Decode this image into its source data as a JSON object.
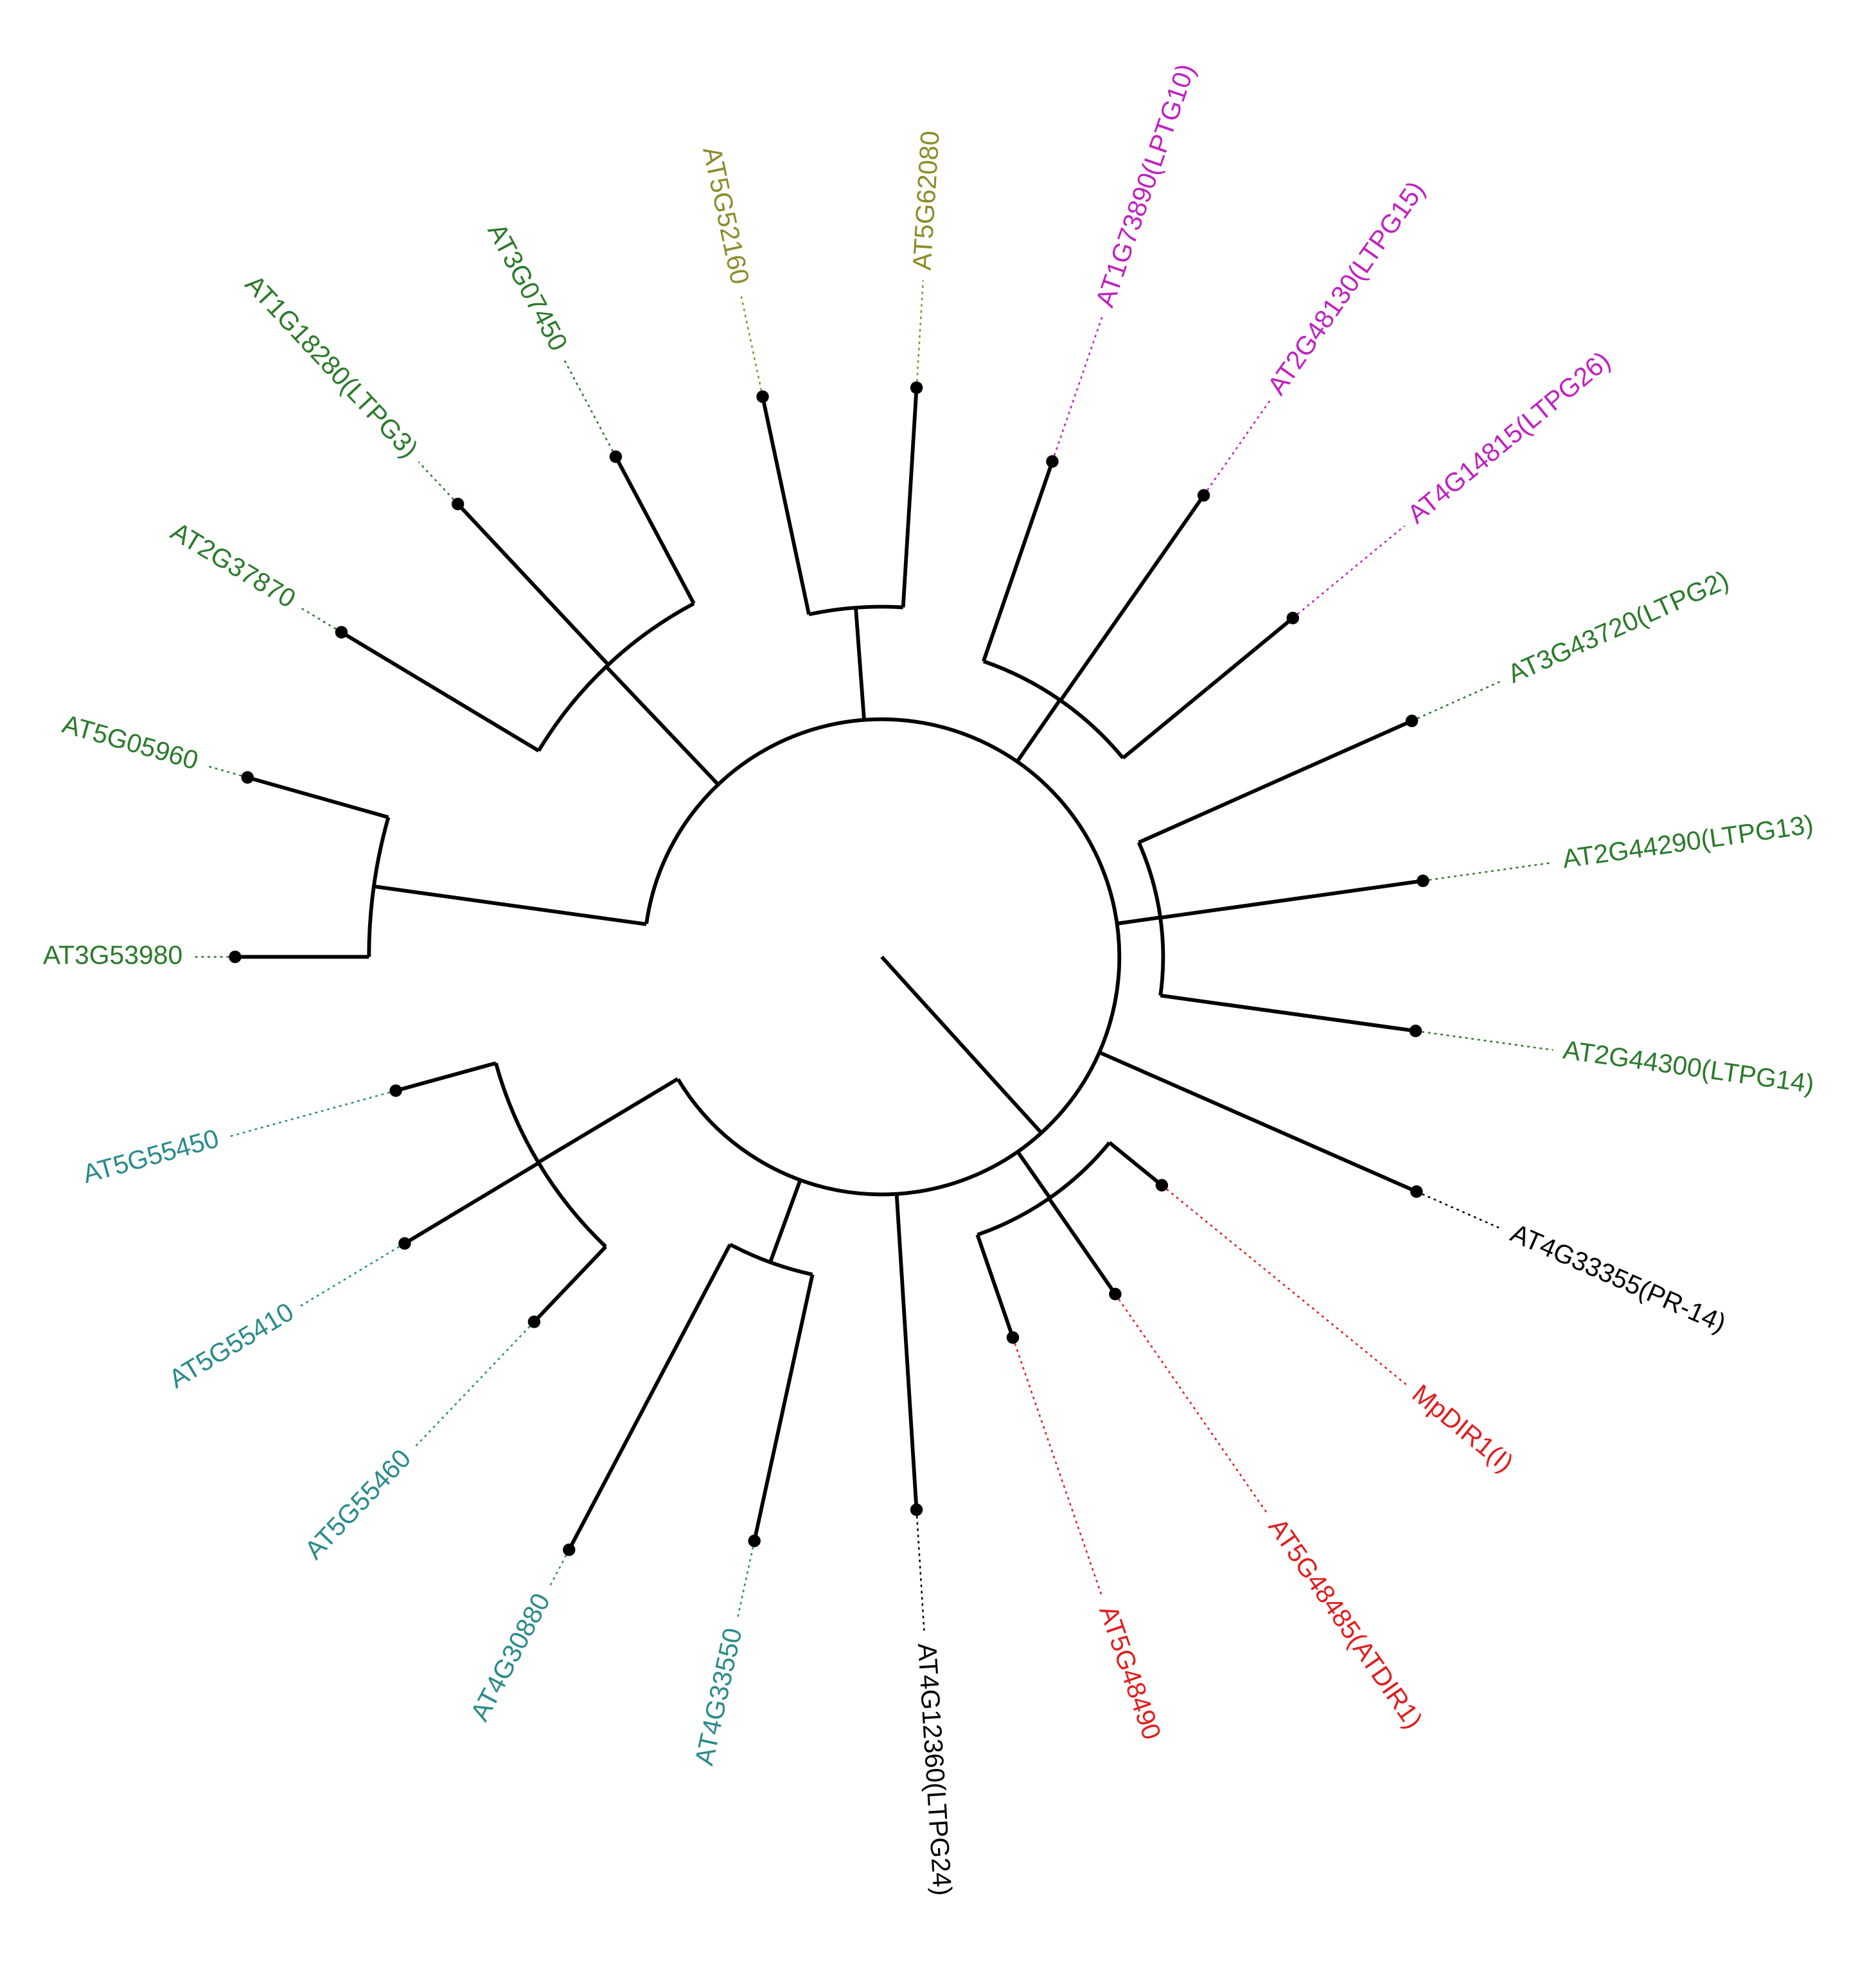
{
  "leaves": [
    {
      "label": "AT3G53980",
      "color": "#2b7a2b"
    },
    {
      "label": "AT5G05960",
      "color": "#2b7a2b"
    },
    {
      "label": "AT2G37870",
      "color": "#2b7a2b"
    },
    {
      "label": "AT1G18280(LTPG3)",
      "color": "#2b7a2b"
    },
    {
      "label": "AT3G07450",
      "color": "#2b7a2b"
    },
    {
      "label": "AT5G52160",
      "color": "#8c8c2a"
    },
    {
      "label": "AT5G62080",
      "color": "#8c8c2a"
    },
    {
      "label": "AT1G73890(LPTG10)",
      "color": "#c020c0"
    },
    {
      "label": "AT2G48130(LTPG15)",
      "color": "#c020c0"
    },
    {
      "label": "AT4G14815(LTPG26)",
      "color": "#c020c0"
    },
    {
      "label": "AT3G43720(LTPG2)",
      "color": "#2b7a2b"
    },
    {
      "label": "AT2G44290(LTPG13)",
      "color": "#2b7a2b"
    },
    {
      "label": "AT2G44300(LTPG14)",
      "color": "#2b7a2b"
    },
    {
      "label": "AT4G33355(PR-14)",
      "color": "#000000"
    },
    {
      "label": "MpDIR1(I)",
      "color": "#e01e1e"
    },
    {
      "label": "AT5G48485(ATDIR1)",
      "color": "#e01e1e"
    },
    {
      "label": "AT5G48490",
      "color": "#e01e1e"
    },
    {
      "label": "AT4G12360(LTPG24)",
      "color": "#000000"
    },
    {
      "label": "AT4G33550",
      "color": "#2a8a8a"
    },
    {
      "label": "AT4G30880",
      "color": "#2a8a8a"
    },
    {
      "label": "AT5G55460",
      "color": "#2a8a8a"
    },
    {
      "label": "AT5G55410",
      "color": "#2a8a8a"
    },
    {
      "label": "AT5G55450",
      "color": "#2a8a8a"
    }
  ]
}
